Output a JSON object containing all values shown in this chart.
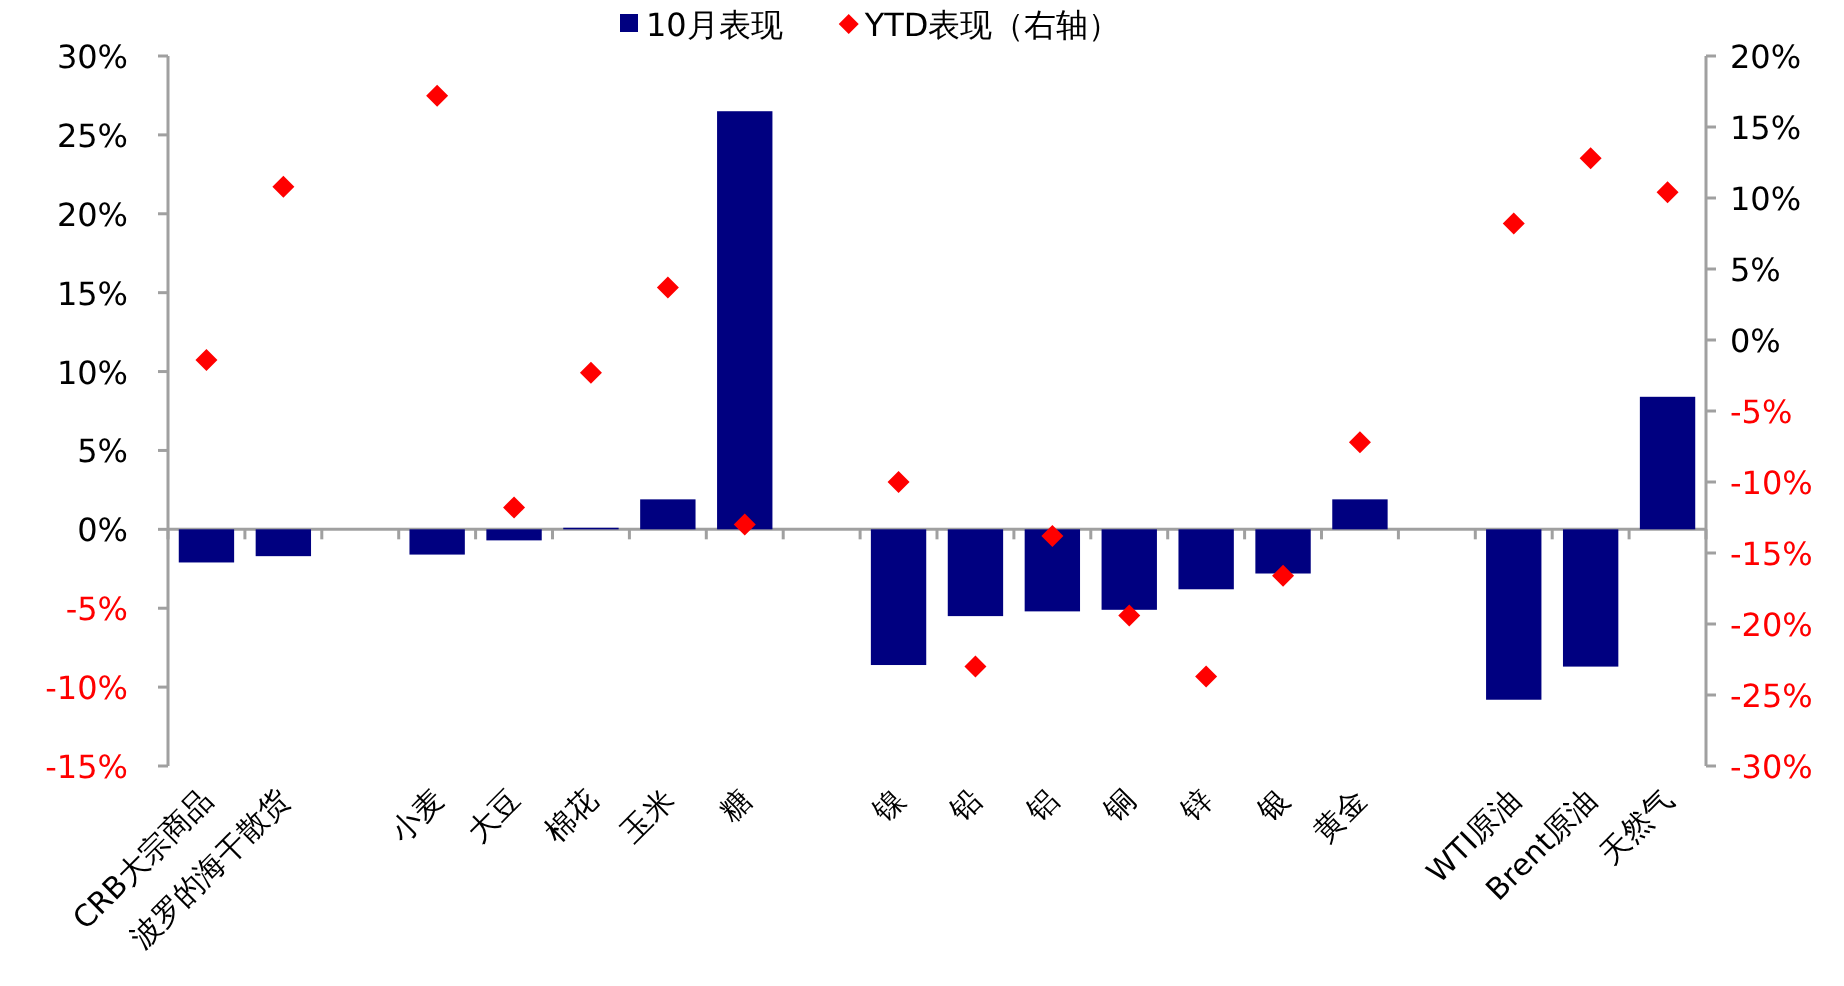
{
  "chart_data": {
    "type": "bar",
    "legend": "top",
    "marker": "diamond",
    "categories": [
      "CRB大宗商品",
      "波罗的海干散货",
      null,
      "小麦",
      "大豆",
      "棉花",
      "玉米",
      "糖",
      null,
      "镍",
      "铅",
      "铝",
      "铜",
      "锌",
      "银",
      "黄金",
      null,
      "WTI原油",
      "Brent原油",
      "天然气"
    ],
    "series": [
      {
        "name": "10月表现",
        "color": "#000080",
        "values": [
          -2.1,
          -1.7,
          null,
          -1.6,
          -0.7,
          0.1,
          1.9,
          26.5,
          null,
          -8.6,
          -5.5,
          -5.2,
          -5.1,
          -3.8,
          -2.8,
          1.9,
          null,
          -10.8,
          -8.7,
          8.4
        ]
      },
      {
        "name": "YTD表现（右轴）",
        "type": "scatter",
        "axis": "y2",
        "color": "#ff0000",
        "values": [
          -1.4,
          10.8,
          null,
          17.2,
          -11.8,
          -2.3,
          3.7,
          -13.0,
          null,
          -10.0,
          -23.0,
          -13.8,
          -19.4,
          -23.7,
          -16.6,
          -7.2,
          null,
          8.2,
          12.8,
          10.4
        ]
      }
    ],
    "ylim": [
      -15,
      30
    ],
    "yticks": [
      {
        "value": -15,
        "label": "-15%"
      },
      {
        "value": -10,
        "label": "-10%"
      },
      {
        "value": -5,
        "label": "-5%"
      },
      {
        "value": 0,
        "label": "0%"
      },
      {
        "value": 5,
        "label": "5%"
      },
      {
        "value": 10,
        "label": "10%"
      },
      {
        "value": 15,
        "label": "15%"
      },
      {
        "value": 20,
        "label": "20%"
      },
      {
        "value": 25,
        "label": "25%"
      },
      {
        "value": 30,
        "label": "30%"
      }
    ],
    "y2lim": [
      -30,
      20
    ],
    "y2ticks": [
      {
        "value": -30,
        "label": "-30%"
      },
      {
        "value": -25,
        "label": "-25%"
      },
      {
        "value": -20,
        "label": "-20%"
      },
      {
        "value": -15,
        "label": "-15%"
      },
      {
        "value": -10,
        "label": "-10%"
      },
      {
        "value": -5,
        "label": "-5%"
      },
      {
        "value": 0,
        "label": "0%"
      },
      {
        "value": 5,
        "label": "5%"
      },
      {
        "value": 10,
        "label": "10%"
      },
      {
        "value": 15,
        "label": "15%"
      },
      {
        "value": 20,
        "label": "20%"
      }
    ]
  }
}
